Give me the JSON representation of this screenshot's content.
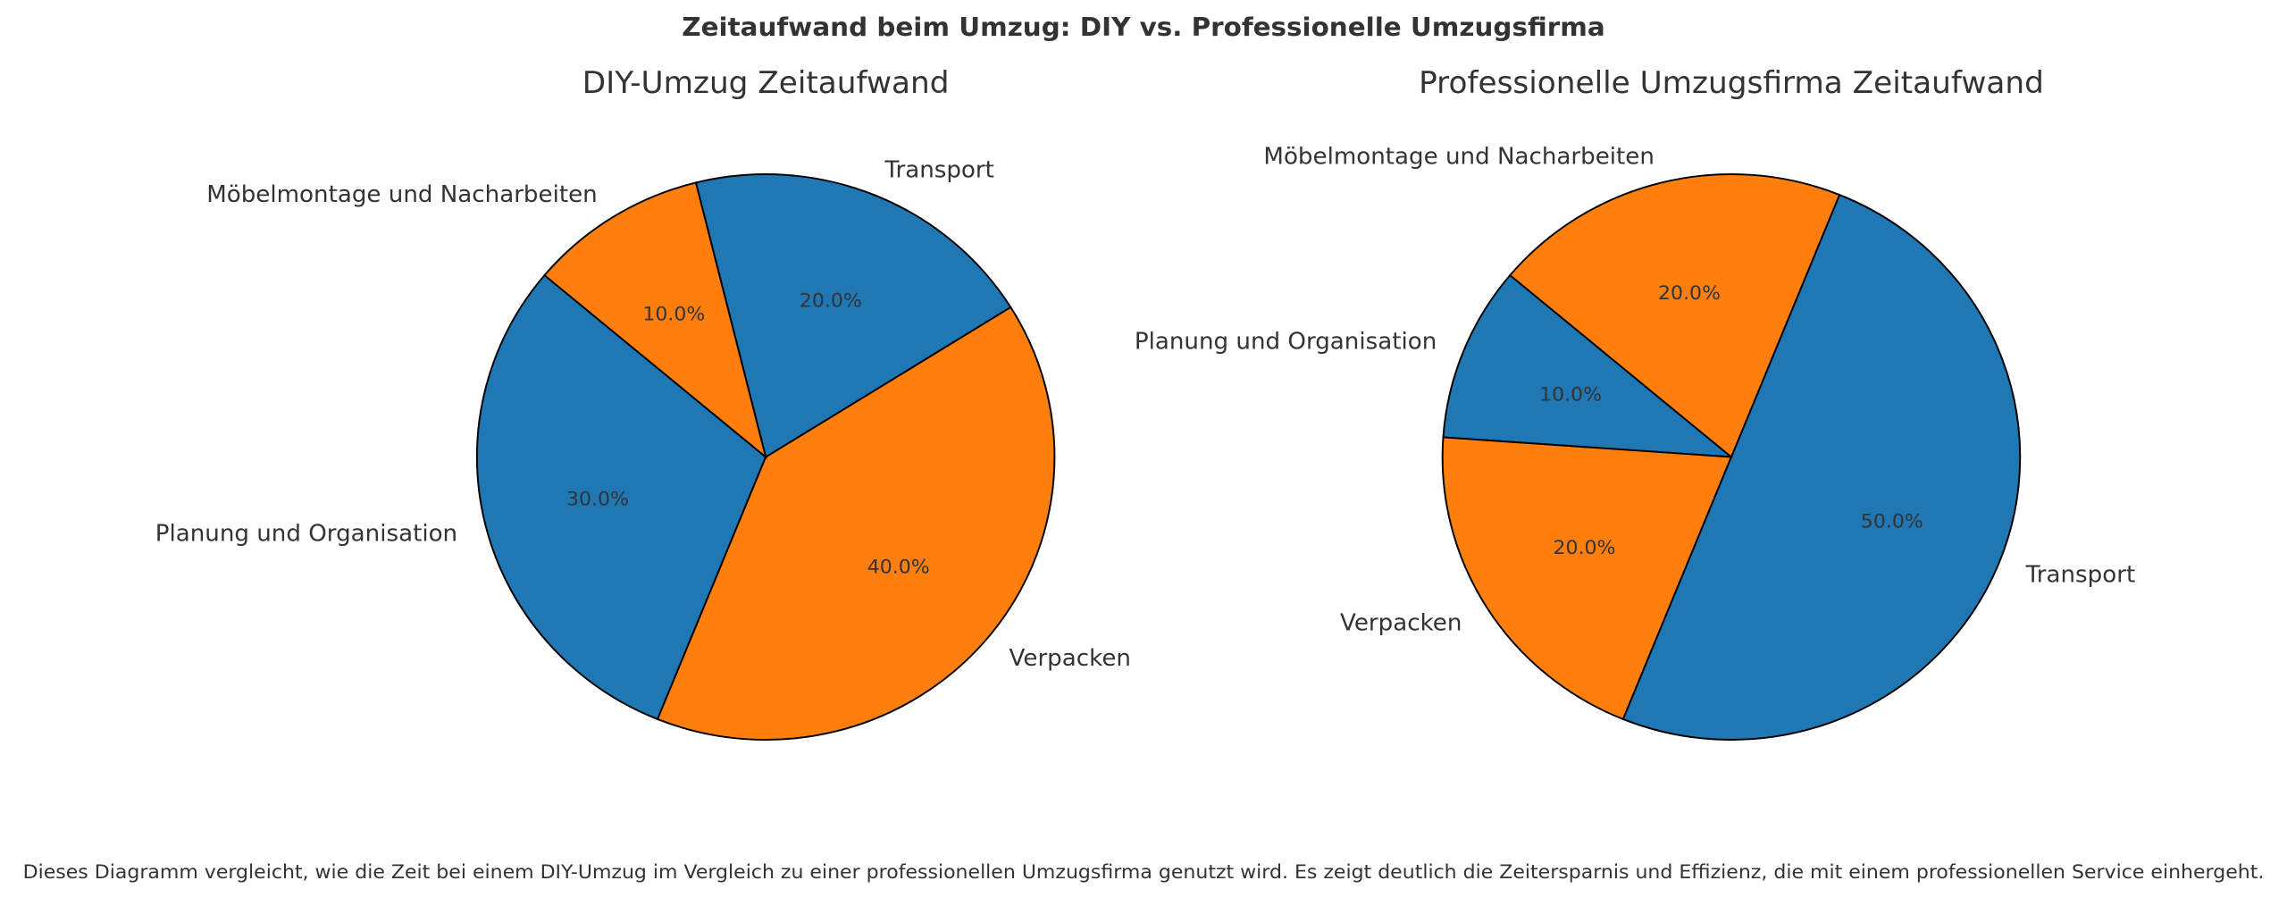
{
  "colors": {
    "blue": "#1f77b4",
    "orange": "#ff7f0e",
    "edge": "#000000"
  },
  "chart_data": {
    "suptitle": "Zeitaufwand beim Umzug: DIY vs. Professionelle Umzugsfirma",
    "caption": "Dieses Diagramm vergleicht, wie die Zeit bei einem DIY-Umzug im Vergleich zu einer professionellen Umzugsfirma genutzt wird. Es zeigt deutlich die Zeitersparnis und Effizienz, die mit einem professionellen Service einhergeht.",
    "charts": [
      {
        "type": "pie",
        "title": "DIY-Umzug Zeitaufwand",
        "start_angle": 140,
        "slices": [
          {
            "label": "Planung und Organisation",
            "value": 30,
            "pct": "30.0%",
            "color": "#1f77b4"
          },
          {
            "label": "Verpacken",
            "value": 40,
            "pct": "40.0%",
            "color": "#ff7f0e"
          },
          {
            "label": "Transport",
            "value": 20,
            "pct": "20.0%",
            "color": "#1f77b4"
          },
          {
            "label": "Möbelmontage und Nacharbeiten",
            "value": 10,
            "pct": "10.0%",
            "color": "#ff7f0e"
          }
        ]
      },
      {
        "type": "pie",
        "title": "Professionelle Umzugsfirma Zeitaufwand",
        "start_angle": 140,
        "slices": [
          {
            "label": "Planung und Organisation",
            "value": 10,
            "pct": "10.0%",
            "color": "#1f77b4"
          },
          {
            "label": "Verpacken",
            "value": 20,
            "pct": "20.0%",
            "color": "#ff7f0e"
          },
          {
            "label": "Transport",
            "value": 50,
            "pct": "50.0%",
            "color": "#1f77b4"
          },
          {
            "label": "Möbelmontage und Nacharbeiten",
            "value": 20,
            "pct": "20.0%",
            "color": "#ff7f0e"
          }
        ]
      }
    ]
  }
}
